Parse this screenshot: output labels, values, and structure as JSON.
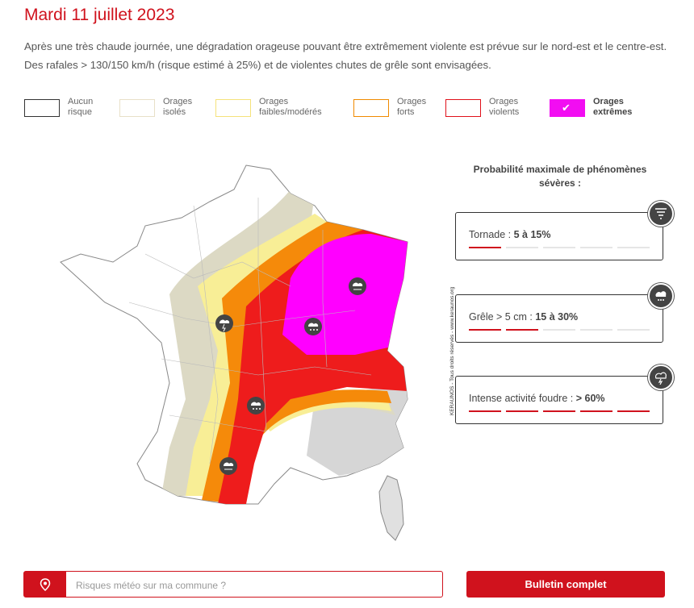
{
  "header": {
    "title": "Mardi 11 juillet 2023",
    "description": "Après une très chaude journée, une dégradation orageuse pouvant être extrêmement violente est prévue sur le nord-est et le centre-est. Des rafales > 130/150 km/h (risque estimé à 25%) et de violentes chutes de grêle sont envisagées."
  },
  "legend": {
    "items": [
      {
        "label_line1": "Aucun",
        "label_line2": "risque",
        "color": "#ffffff",
        "border": "#333333"
      },
      {
        "label_line1": "Orages",
        "label_line2": "isolés",
        "color": "#ffffff",
        "border": "#e8e0c8"
      },
      {
        "label_line1": "Orages",
        "label_line2": "faibles/modérés",
        "color": "#ffffff",
        "border": "#f5e27a"
      },
      {
        "label_line1": "Orages",
        "label_line2": "forts",
        "color": "#ffffff",
        "border": "#f08a00"
      },
      {
        "label_line1": "Orages",
        "label_line2": "violents",
        "color": "#ffffff",
        "border": "#e0101a"
      },
      {
        "label_line1": "Orages",
        "label_line2": "extrêmes",
        "color": "#f20df2",
        "border": "#f20df2",
        "selected": true
      }
    ]
  },
  "map": {
    "copyright": "KERAUNOS - Tous droits réservés - www.keraunos.org",
    "zone_colors": {
      "isoles": "#dcd9c4",
      "faibles": "#f8ee96",
      "forts": "#f58a0a",
      "violents": "#ee1c1c",
      "extremes": "#ff00ff"
    }
  },
  "probabilities": {
    "title": "Probabilité maximale de phénomènes sévères :",
    "items": [
      {
        "label": "Tornade : ",
        "value": "5 à 15%",
        "level": 1,
        "icon": "tornado-icon"
      },
      {
        "label": "Grêle > 5 cm : ",
        "value": "15 à 30%",
        "level": 2,
        "icon": "hail-icon"
      },
      {
        "label": "Intense activité foudre : ",
        "value": "> 60%",
        "level": 5,
        "icon": "lightning-icon"
      }
    ]
  },
  "footer": {
    "search_placeholder": "Risques météo sur ma commune ?",
    "bulletin_label": "Bulletin complet"
  }
}
